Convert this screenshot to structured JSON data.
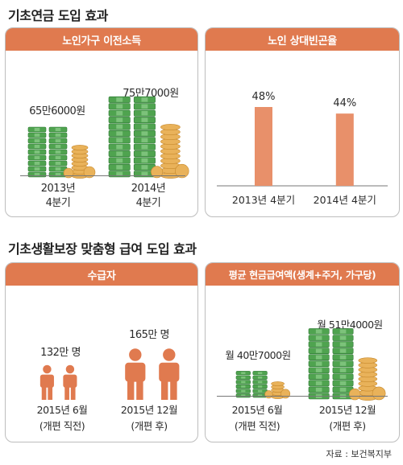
{
  "section1_title": "기초연금 도입 효과",
  "section2_title": "기초생활보장 맞춤형 급여 도입 효과",
  "source": "자료 : 보건복지부",
  "colors": {
    "header": "#e07a4f",
    "bar": "#e8906a",
    "money_green": "#4fa34f",
    "coin": "#e9b25a",
    "person": "#e07a4f"
  },
  "chart_data": [
    {
      "type": "bar",
      "title": "노인가구 이전소득",
      "categories": [
        "2013년 4분기",
        "2014년 4분기"
      ],
      "category_lines": [
        [
          "2013년",
          "4분기"
        ],
        [
          "2014년",
          "4분기"
        ]
      ],
      "values": [
        656000,
        757000
      ],
      "value_labels": [
        "65만6000원",
        "75만7000원"
      ],
      "icon": "money-stack-icon"
    },
    {
      "type": "bar",
      "title": "노인 상대빈곤율",
      "categories": [
        "2013년 4분기",
        "2014년 4분기"
      ],
      "values": [
        48,
        44
      ],
      "value_labels": [
        "48%",
        "44%"
      ],
      "ylim": [
        0,
        60
      ]
    },
    {
      "type": "bar",
      "title": "수급자",
      "categories": [
        "2015년 6월 (개편 직전)",
        "2015년 12월 (개편 후)"
      ],
      "category_lines": [
        [
          "2015년 6월",
          "(개편 직전)"
        ],
        [
          "2015년 12월",
          "(개편 후)"
        ]
      ],
      "values": [
        1320000,
        1650000
      ],
      "value_labels": [
        "132만 명",
        "165만 명"
      ],
      "icon": "person-icon"
    },
    {
      "type": "bar",
      "title": "평균 현금급여액(생계+주거, 가구당)",
      "categories": [
        "2015년 6월 (개편 직전)",
        "2015년 12월 (개편 후)"
      ],
      "category_lines": [
        [
          "2015년 6월",
          "(개편 직전)"
        ],
        [
          "2015년 12월",
          "(개편 후)"
        ]
      ],
      "values": [
        407000,
        514000
      ],
      "value_labels": [
        "월 40만7000원",
        "월 51만4000원"
      ],
      "icon": "money-stack-icon"
    }
  ]
}
